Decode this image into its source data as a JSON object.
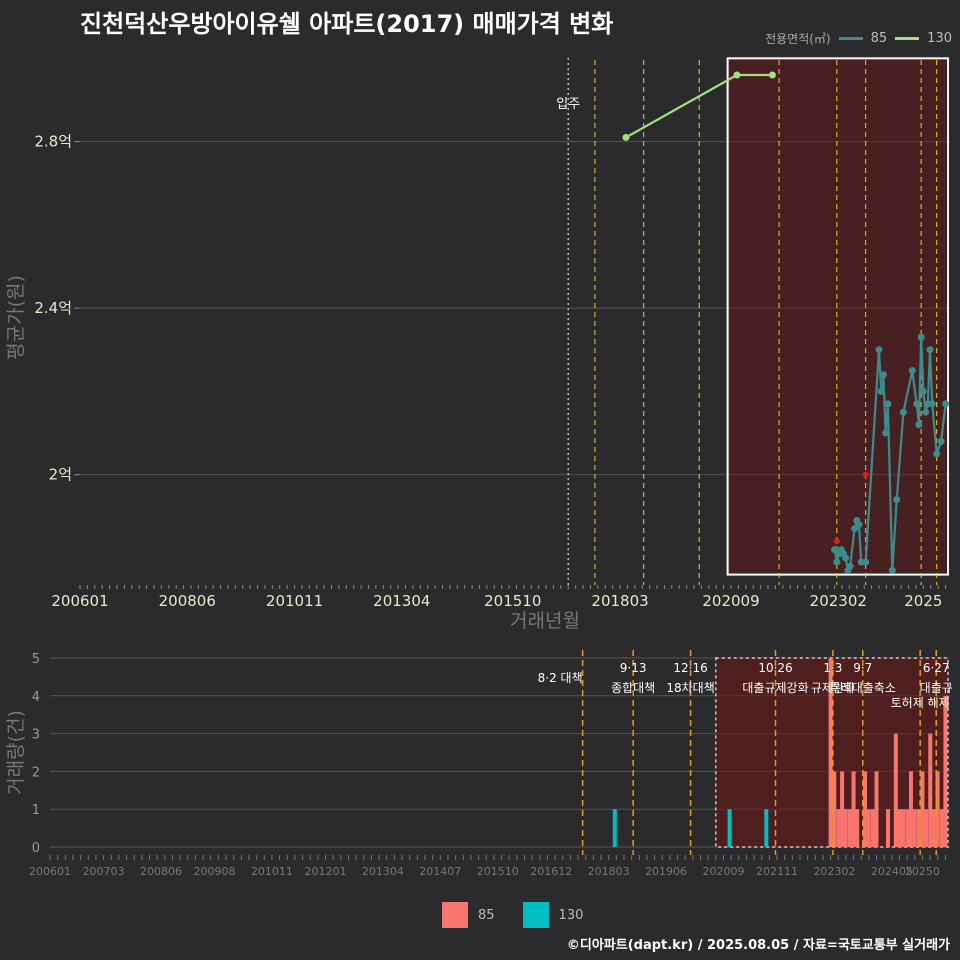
{
  "title": "진천덕산우방아이유쉘 아파트(2017) 매매가격 변화",
  "legend_top": {
    "title": "전용면적(㎡)",
    "items": [
      {
        "label": "85",
        "color": "#3a8d8c"
      },
      {
        "label": "130",
        "color": "#9de27e"
      }
    ]
  },
  "legend_bottom": {
    "items": [
      {
        "label": "85",
        "color": "#f8766d"
      },
      {
        "label": "130",
        "color": "#00bfc4"
      }
    ]
  },
  "credit": "©디아파트(dapt.kr) / 2025.08.05 / 자료=국토교통부 실거래가",
  "chart_data": [
    {
      "type": "line",
      "title": "진천덕산우방아이유쉘 아파트(2017) 매매가격 변화",
      "xlabel": "거래년월",
      "ylabel": "평균가(원)",
      "x_range": [
        2006.0,
        2025.6
      ],
      "ylim": [
        1.735,
        3.02
      ],
      "y_unit": "억",
      "x_ticks": [
        "200601",
        "200806",
        "201011",
        "201304",
        "201510",
        "201803",
        "202009",
        "202302",
        "2025"
      ],
      "y_ticks": [
        {
          "value": 2.0,
          "label": "2억"
        },
        {
          "value": 2.4,
          "label": "2.4억"
        },
        {
          "value": 2.8,
          "label": "2.8억"
        }
      ],
      "series": [
        {
          "name": "85",
          "color": "#3a8d8c",
          "x": [
            2023.0,
            2023.05,
            2023.1,
            2023.15,
            2023.2,
            2023.25,
            2023.3,
            2023.35,
            2023.45,
            2023.5,
            2023.55,
            2023.6,
            2023.7,
            2024.0,
            2024.05,
            2024.1,
            2024.15,
            2024.2,
            2024.3,
            2024.4,
            2024.55,
            2024.75,
            2024.85,
            2024.9,
            2024.95,
            2025.0,
            2025.05,
            2025.1,
            2025.15,
            2025.2,
            2025.3,
            2025.4,
            2025.5
          ],
          "y": [
            1.82,
            1.79,
            1.81,
            1.82,
            1.81,
            1.8,
            1.77,
            1.78,
            1.87,
            1.89,
            1.88,
            1.79,
            1.79,
            2.3,
            2.2,
            2.24,
            2.1,
            2.17,
            1.77,
            1.94,
            2.15,
            2.25,
            2.17,
            2.12,
            2.33,
            2.2,
            2.15,
            2.17,
            2.3,
            2.17,
            2.05,
            2.08,
            2.17
          ]
        },
        {
          "name": "130",
          "color": "#9de27e",
          "x": [
            2018.3,
            2020.8,
            2021.6
          ],
          "y": [
            2.81,
            2.96,
            2.96
          ]
        }
      ],
      "red_markers": [
        {
          "x": 2023.05,
          "y": 1.84
        },
        {
          "x": 2023.7,
          "y": 2.0
        }
      ],
      "annotations": [
        {
          "label": "입주",
          "x": 2017.0
        }
      ],
      "highlight": {
        "x": [
          2020.5,
          2025.6
        ],
        "y": [
          1.76,
          3.0
        ]
      },
      "dashed_vlines": [
        2017.6,
        2018.7,
        2019.95,
        2021.75,
        2023.05,
        2023.7,
        2024.95,
        2025.3
      ]
    },
    {
      "type": "bar",
      "xlabel": "",
      "ylabel": "거래량(건)",
      "x_range": [
        2006.0,
        2025.6
      ],
      "ylim": [
        0,
        5
      ],
      "y_ticks": [
        0,
        1,
        2,
        3,
        4,
        5
      ],
      "x_ticks": [
        "200601",
        "200703",
        "200806",
        "200908",
        "201011",
        "201201",
        "201304",
        "201407",
        "201510",
        "201612",
        "201803",
        "201906",
        "202009",
        "202111",
        "202302",
        "202405",
        "20250"
      ],
      "series": [
        {
          "name": "85",
          "color": "#f8766d",
          "x": [
            2023.0,
            2023.08,
            2023.17,
            2023.25,
            2023.33,
            2023.42,
            2023.5,
            2023.58,
            2023.75,
            2023.83,
            2023.92,
            2024.0,
            2024.25,
            2024.42,
            2024.5,
            2024.58,
            2024.67,
            2024.75,
            2024.83,
            2024.92,
            2025.0,
            2025.08,
            2025.17,
            2025.25,
            2025.33,
            2025.42,
            2025.5
          ],
          "values": [
            5,
            2,
            1,
            2,
            1,
            1,
            2,
            1,
            2,
            1,
            1,
            2,
            1,
            3,
            1,
            1,
            1,
            2,
            1,
            1,
            2,
            1,
            3,
            1,
            2,
            1,
            4
          ]
        },
        {
          "name": "130",
          "color": "#00bfc4",
          "x": [
            2018.3,
            2020.8,
            2021.6
          ],
          "values": [
            1,
            1,
            1
          ]
        }
      ],
      "policies": [
        {
          "date": "8·2",
          "label": "대책",
          "x": 2017.6
        },
        {
          "date": "9·13",
          "label": "종합대책",
          "x": 2018.7
        },
        {
          "date": "12·16",
          "label": "18차대책",
          "x": 2019.95
        },
        {
          "date": "10·26",
          "label": "대출규제강화",
          "x": 2021.8
        },
        {
          "date": "1·3",
          "label": "규제완화",
          "x": 2023.05
        },
        {
          "date": "9·7",
          "label": "특례대출축소",
          "x": 2023.7
        },
        {
          "date": "",
          "label": "토허제 해제",
          "x": 2024.95
        },
        {
          "date": "6·27",
          "label": "대출규",
          "x": 2025.3
        }
      ],
      "highlight": {
        "x": [
          2020.5,
          2025.6
        ]
      }
    }
  ]
}
